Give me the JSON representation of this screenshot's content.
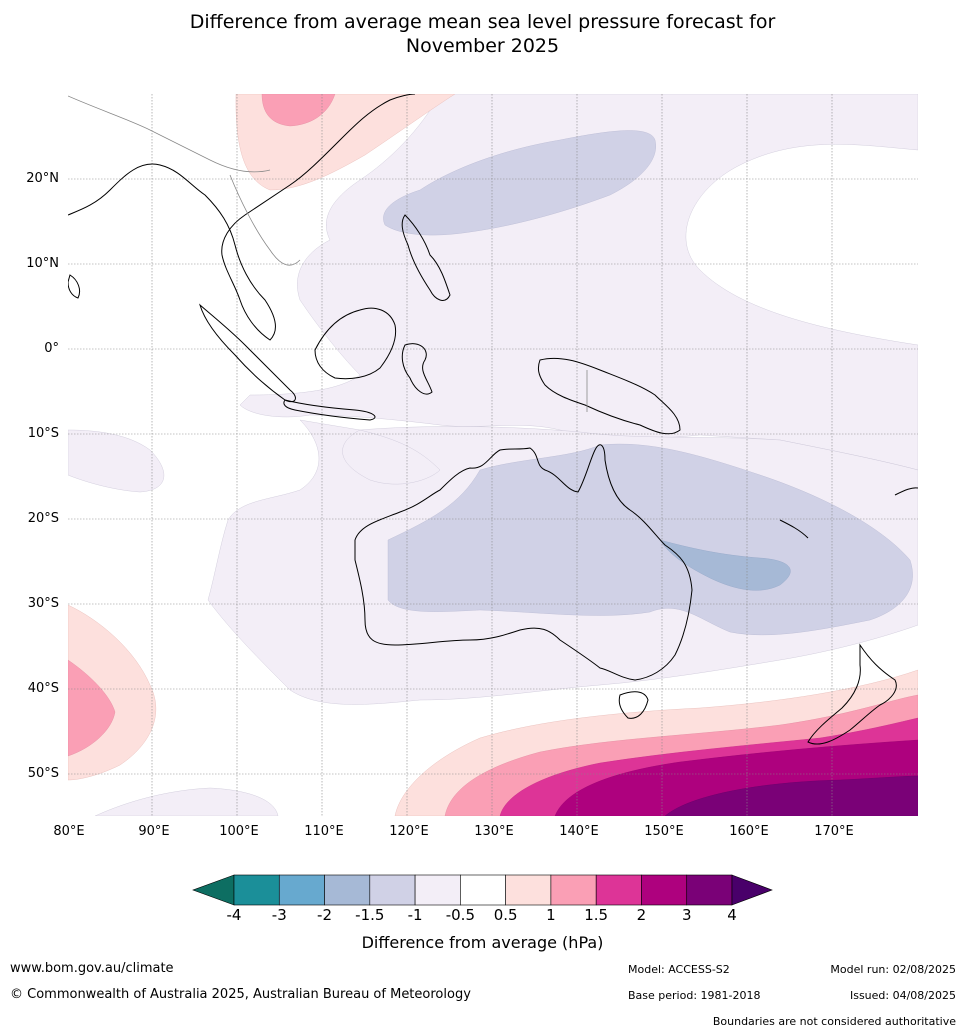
{
  "title": {
    "line1": "Difference from average mean sea level pressure forecast for",
    "line2": "November 2025"
  },
  "map": {
    "lat_labels": [
      "20°N",
      "10°N",
      "0°",
      "10°S",
      "20°S",
      "30°S",
      "40°S",
      "50°S"
    ],
    "lon_labels": [
      "80°E",
      "90°E",
      "100°E",
      "110°E",
      "120°E",
      "130°E",
      "140°E",
      "150°E",
      "160°E",
      "170°E"
    ],
    "extent": {
      "lon_min": 80,
      "lon_max": 180,
      "lat_min": -55,
      "lat_max": 30
    }
  },
  "colorbar": {
    "label": "Difference from average (hPa)",
    "ticks": [
      "-4",
      "-3",
      "-2",
      "-1.5",
      "-1",
      "-0.5",
      "0.5",
      "1",
      "1.5",
      "2",
      "3",
      "4"
    ],
    "colors": [
      "#0d6e62",
      "#1b8f99",
      "#67a9cf",
      "#a6b9d6",
      "#d0d1e6",
      "#f3eef7",
      "#ffffff",
      "#fde0dd",
      "#fa9fb5",
      "#dd3497",
      "#ae017e",
      "#7a0177",
      "#49006a"
    ]
  },
  "footer": {
    "website": "www.bom.gov.au/climate",
    "copyright": "© Commonwealth of Australia 2025, Australian Bureau of Meteorology",
    "model": "Model: ACCESS-S2",
    "base_period": "Base period: 1981-2018",
    "model_run": "Model run: 02/08/2025",
    "issued": "Issued: 04/08/2025",
    "disclaimer": "Boundaries are not considered authoritative"
  }
}
